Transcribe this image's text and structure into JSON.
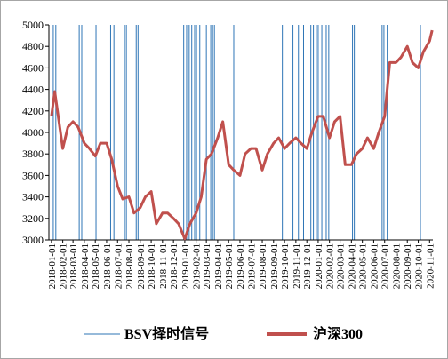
{
  "chart_data": {
    "type": "line",
    "x": [
      "2018-01-01",
      "2018-01-10",
      "2018-02-01",
      "2018-02-15",
      "2018-03-01",
      "2018-03-15",
      "2018-04-01",
      "2018-04-15",
      "2018-05-01",
      "2018-05-15",
      "2018-06-01",
      "2018-06-15",
      "2018-07-01",
      "2018-07-15",
      "2018-08-01",
      "2018-08-15",
      "2018-09-01",
      "2018-09-15",
      "2018-10-01",
      "2018-10-15",
      "2018-11-01",
      "2018-11-15",
      "2018-12-01",
      "2018-12-15",
      "2019-01-01",
      "2019-01-15",
      "2019-02-01",
      "2019-02-15",
      "2019-03-01",
      "2019-03-15",
      "2019-04-01",
      "2019-04-15",
      "2019-05-01",
      "2019-05-15",
      "2019-06-01",
      "2019-06-15",
      "2019-07-01",
      "2019-07-15",
      "2019-08-01",
      "2019-08-15",
      "2019-09-01",
      "2019-09-15",
      "2019-10-01",
      "2019-10-15",
      "2019-11-01",
      "2019-11-15",
      "2019-12-01",
      "2019-12-15",
      "2020-01-01",
      "2020-01-15",
      "2020-02-01",
      "2020-02-15",
      "2020-03-01",
      "2020-03-15",
      "2020-04-01",
      "2020-04-15",
      "2020-05-01",
      "2020-05-15",
      "2020-06-01",
      "2020-06-15",
      "2020-07-01",
      "2020-07-15",
      "2020-08-01",
      "2020-08-15",
      "2020-09-01",
      "2020-09-15",
      "2020-10-01",
      "2020-10-15",
      "2020-11-01",
      "2020-11-08"
    ],
    "series": [
      {
        "name": "沪深300",
        "color": "#c0504d",
        "values": [
          4150,
          4380,
          3850,
          4050,
          4100,
          4050,
          3900,
          3850,
          3780,
          3900,
          3900,
          3750,
          3500,
          3380,
          3400,
          3250,
          3300,
          3400,
          3450,
          3150,
          3250,
          3250,
          3200,
          3150,
          3010,
          3150,
          3250,
          3400,
          3750,
          3800,
          3950,
          4100,
          3700,
          3650,
          3600,
          3800,
          3850,
          3850,
          3650,
          3800,
          3900,
          3950,
          3850,
          3900,
          3950,
          3900,
          3850,
          4000,
          4150,
          4150,
          3950,
          4100,
          4150,
          3700,
          3700,
          3800,
          3850,
          3950,
          3850,
          4000,
          4150,
          4650,
          4650,
          4700,
          4800,
          4650,
          4600,
          4750,
          4850,
          4950
        ]
      }
    ],
    "signals": {
      "name": "BSV择时信号",
      "color": "#2e75b6",
      "x": [
        "2018-01-06",
        "2018-01-13",
        "2018-03-18",
        "2018-03-25",
        "2018-05-03",
        "2018-06-12",
        "2018-06-21",
        "2018-07-20",
        "2018-07-25",
        "2018-08-21",
        "2018-08-26",
        "2018-12-29",
        "2019-01-06",
        "2019-01-13",
        "2019-01-20",
        "2019-01-28",
        "2019-02-02",
        "2019-02-11",
        "2019-03-01",
        "2019-03-13",
        "2019-03-18",
        "2019-03-23",
        "2019-05-15",
        "2019-09-25",
        "2019-10-24",
        "2019-11-08",
        "2019-11-22",
        "2019-12-12",
        "2019-12-19",
        "2019-12-27",
        "2020-01-01",
        "2020-01-11",
        "2020-01-23",
        "2020-01-30",
        "2020-04-04",
        "2020-04-09",
        "2020-06-24",
        "2020-06-29",
        "2020-07-08",
        "2020-10-07"
      ]
    },
    "xlim": [
      "2017-12-25",
      "2020-11-10"
    ],
    "xticks": [
      "2018-01-01",
      "2018-02-01",
      "2018-03-01",
      "2018-04-01",
      "2018-05-01",
      "2018-06-01",
      "2018-07-01",
      "2018-08-01",
      "2018-09-01",
      "2018-10-01",
      "2018-11-01",
      "2018-12-01",
      "2019-01-01",
      "2019-02-01",
      "2019-03-01",
      "2019-04-01",
      "2019-05-01",
      "2019-06-01",
      "2019-07-01",
      "2019-08-01",
      "2019-09-01",
      "2019-10-01",
      "2019-11-01",
      "2019-12-01",
      "2020-01-01",
      "2020-02-01",
      "2020-03-01",
      "2020-04-01",
      "2020-05-01",
      "2020-06-01",
      "2020-07-01",
      "2020-08-01",
      "2020-09-01",
      "2020-10-01",
      "2020-11-01"
    ],
    "ylim": [
      3000,
      5000
    ],
    "yticks": [
      3000,
      3200,
      3400,
      3600,
      3800,
      4000,
      4200,
      4400,
      4600,
      4800,
      5000
    ]
  }
}
